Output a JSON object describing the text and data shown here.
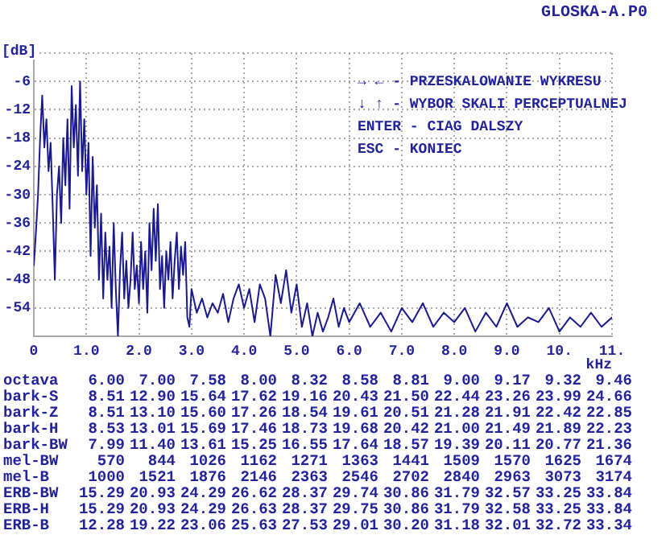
{
  "chart_data": {
    "type": "line",
    "title": "GLOSKA-A.P0",
    "ylabel": "[dB]",
    "xlabel": "kHz",
    "xlim": [
      0,
      11
    ],
    "ylim": [
      -60,
      0
    ],
    "xticks": [
      0,
      {
        "value": 1,
        "label": "1.0"
      },
      {
        "value": 2,
        "label": "2.0"
      },
      {
        "value": 3,
        "label": "3.0"
      },
      {
        "value": 4,
        "label": "4.0"
      },
      {
        "value": 5,
        "label": "5.0"
      },
      {
        "value": 6,
        "label": "6.0"
      },
      {
        "value": 7,
        "label": "7.0"
      },
      {
        "value": 8,
        "label": "8.0"
      },
      {
        "value": 9,
        "label": "9.0"
      },
      {
        "value": 10,
        "label": "10."
      },
      {
        "value": 11,
        "label": "11."
      }
    ],
    "yticks": [
      {
        "value": 0,
        "label": null
      },
      -6,
      -12,
      -18,
      -24,
      -30,
      -36,
      -42,
      -48,
      -54,
      {
        "value": -60,
        "label": null
      }
    ],
    "grid": true,
    "marker": "none",
    "line_style": "solid",
    "series": [
      {
        "color": "#1a1a8c",
        "x": [
          0,
          0.04,
          0.08,
          0.12,
          0.16,
          0.2,
          0.24,
          0.28,
          0.32,
          0.36,
          0.4,
          0.44,
          0.48,
          0.52,
          0.56,
          0.6,
          0.64,
          0.68,
          0.72,
          0.76,
          0.8,
          0.84,
          0.88,
          0.92,
          0.96,
          1,
          1.04,
          1.08,
          1.12,
          1.16,
          1.2,
          1.24,
          1.28,
          1.32,
          1.36,
          1.4,
          1.44,
          1.48,
          1.52,
          1.56,
          1.6,
          1.64,
          1.68,
          1.72,
          1.76,
          1.8,
          1.84,
          1.88,
          1.92,
          1.96,
          2,
          2.04,
          2.08,
          2.12,
          2.16,
          2.2,
          2.24,
          2.28,
          2.32,
          2.36,
          2.4,
          2.44,
          2.48,
          2.52,
          2.56,
          2.6,
          2.64,
          2.68,
          2.72,
          2.76,
          2.8,
          2.84,
          2.88,
          2.92,
          2.96,
          3,
          3.1,
          3.2,
          3.3,
          3.4,
          3.5,
          3.6,
          3.7,
          3.8,
          3.9,
          4,
          4.1,
          4.2,
          4.3,
          4.4,
          4.5,
          4.6,
          4.7,
          4.8,
          4.9,
          5,
          5.1,
          5.2,
          5.3,
          5.4,
          5.5,
          5.6,
          5.7,
          5.8,
          5.9,
          6,
          6.2,
          6.4,
          6.6,
          6.8,
          7,
          7.2,
          7.4,
          7.6,
          7.8,
          8,
          8.2,
          8.4,
          8.6,
          8.8,
          9,
          9.2,
          9.4,
          9.6,
          9.8,
          10,
          10.2,
          10.4,
          10.6,
          10.8,
          11
        ],
        "values": [
          -45,
          -38,
          -30,
          -18,
          -9,
          -20,
          -14,
          -25,
          -19,
          -33,
          -48,
          -30,
          -24,
          -36,
          -18,
          -28,
          -14,
          -33,
          -7,
          -20,
          -11,
          -26,
          -6,
          -25,
          -14,
          -30,
          -19,
          -43,
          -22,
          -37,
          -28,
          -48,
          -34,
          -52,
          -38,
          -48,
          -41,
          -54,
          -36,
          -50,
          -60,
          -46,
          -38,
          -52,
          -44,
          -54,
          -48,
          -38,
          -50,
          -45,
          -53,
          -40,
          -50,
          -42,
          -55,
          -36,
          -46,
          -33,
          -44,
          -32,
          -50,
          -43,
          -54,
          -42,
          -48,
          -40,
          -52,
          -44,
          -38,
          -50,
          -41,
          -47,
          -40,
          -56,
          -58,
          -50,
          -55,
          -52,
          -56,
          -53,
          -55,
          -51,
          -57,
          -52,
          -49,
          -54,
          -50,
          -57,
          -49,
          -52,
          -60,
          -47,
          -53,
          -46,
          -55,
          -49,
          -58,
          -53,
          -60,
          -55,
          -59,
          -56,
          -52,
          -58,
          -54,
          -57,
          -53,
          -58,
          -55,
          -59,
          -54,
          -57,
          -53,
          -58,
          -55,
          -57,
          -54,
          -59,
          -55,
          -58,
          -53,
          -58,
          -56,
          -57,
          -54,
          -59,
          -56,
          -58,
          -55,
          -58,
          -56
        ]
      }
    ],
    "annotations": [
      "→ ← - PRZESKALOWANIE WYKRESU",
      "↓ ↑ - WYBOR SKALI PERCEPTUALNEJ",
      "ENTER - CIAG DALSZY",
      "ESC - KONIEC",
      "octava 6.00 7.00 7.58 8.00 8.32 8.58 8.81 9.00 9.17 9.32 9.46",
      "bark-S 8.51 12.90 15.64 17.62 19.16 20.43 21.50 22.44 23.26 23.99 24.66",
      "bark-Z 8.51 13.10 15.60 17.26 18.54 19.61 20.51 21.28 21.91 22.42 22.85",
      "bark-H 8.53 13.01 15.69 17.46 18.73 19.68 20.42 21.00 21.49 21.89 22.23",
      "bark-BW 7.99 11.40 13.61 15.25 16.55 17.64 18.57 19.39 20.11 20.77 21.36",
      "mel-BW 570 844 1026 1162 1271 1363 1441 1509 1570 1625 1674",
      "mel-B 1000 1521 1876 2146 2363 2546 2702 2840 2963 3073 3174",
      "ERB-BW 15.29 20.93 24.29 26.62 28.37 29.74 30.86 31.79 32.57 33.25 33.84",
      "ERB-H 15.29 20.93 24.29 26.63 28.37 29.75 30.86 31.79 32.58 33.25 33.84",
      "ERB-B 12.28 19.22 23.06 25.63 27.53 29.01 30.20 31.18 32.01 32.72 33.34"
    ]
  }
}
